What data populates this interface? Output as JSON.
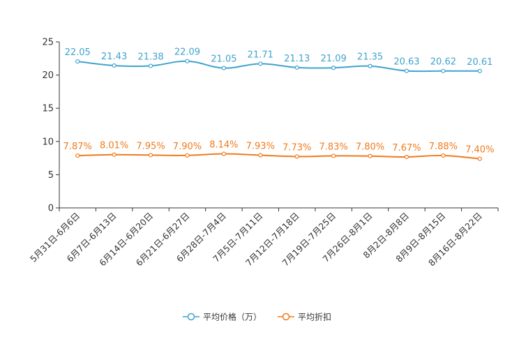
{
  "chart_data": {
    "type": "line",
    "categories": [
      "5月31日-6月6日",
      "6月7日-6月13日",
      "6月14日-6月20日",
      "6月21日-6月27日",
      "6月28日-7月4日",
      "7月5日-7月11日",
      "7月12日-7月18日",
      "7月19日-7月25日",
      "7月26日-8月1日",
      "8月2日-8月8日",
      "8月9日-8月15日",
      "8月16日-8月22日"
    ],
    "ylim": [
      0,
      25
    ],
    "yticks": [
      "0",
      "5",
      "10",
      "15",
      "20",
      "25"
    ],
    "series": [
      {
        "name": "平均价格（万）",
        "color": "#3fa3cf",
        "values": [
          22.05,
          21.43,
          21.38,
          22.09,
          21.05,
          21.71,
          21.13,
          21.09,
          21.35,
          20.63,
          20.62,
          20.61
        ],
        "labels": [
          "22.05",
          "21.43",
          "21.38",
          "22.09",
          "21.05",
          "21.71",
          "21.13",
          "21.09",
          "21.35",
          "20.63",
          "20.62",
          "20.61"
        ]
      },
      {
        "name": "平均折扣",
        "color": "#f07a1b",
        "values": [
          7.87,
          8.01,
          7.95,
          7.9,
          8.14,
          7.93,
          7.73,
          7.83,
          7.8,
          7.67,
          7.88,
          7.4
        ],
        "labels": [
          "7.87%",
          "8.01%",
          "7.95%",
          "7.90%",
          "8.14%",
          "7.93%",
          "7.73%",
          "7.83%",
          "7.80%",
          "7.67%",
          "7.88%",
          "7.40%"
        ]
      }
    ],
    "legend_position": "bottom-center"
  }
}
